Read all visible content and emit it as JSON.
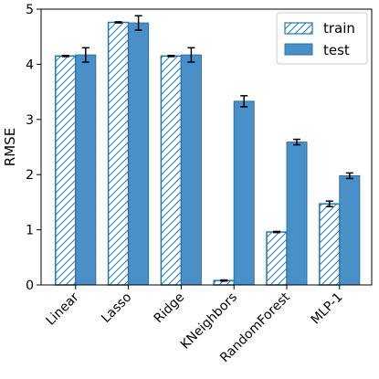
{
  "chart_data": {
    "type": "bar",
    "categories": [
      "Linear",
      "Lasso",
      "Ridge",
      "KNeighbors",
      "RandomForest",
      "MLP-1"
    ],
    "ylabel": "RMSE",
    "xlabel": "",
    "ylim": [
      0,
      5
    ],
    "yticks": [
      0,
      1,
      2,
      3,
      4,
      5
    ],
    "grid": false,
    "legend_position": "top-right",
    "series": [
      {
        "name": "train",
        "values": [
          4.15,
          4.76,
          4.15,
          0.08,
          0.96,
          1.47
        ],
        "errors": [
          0.01,
          0.01,
          0.01,
          0.01,
          0.01,
          0.05
        ],
        "style": "hatched",
        "color": "#1f77b4"
      },
      {
        "name": "test",
        "values": [
          4.17,
          4.75,
          4.17,
          3.33,
          2.59,
          1.98
        ],
        "errors": [
          0.13,
          0.13,
          0.13,
          0.1,
          0.05,
          0.05
        ],
        "style": "solid",
        "color": "#4a90c8"
      }
    ]
  }
}
